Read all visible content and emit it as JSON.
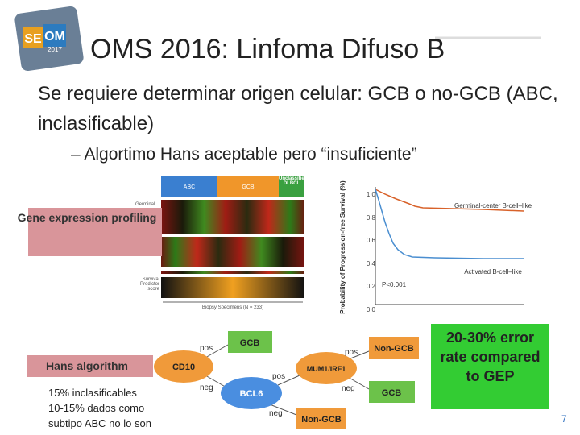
{
  "logo": {
    "left": "SE",
    "right": "OM",
    "year": "2017"
  },
  "title": "OMS 2016: Linfoma Difuso B",
  "bullet": "Se requiere determinar origen celular: GCB o no-GCB (ABC, inclasificable)",
  "sub_bullet": "– Algortimo Hans aceptable pero “insuficiente”",
  "gep": {
    "label": "Gene expression profiling",
    "headers": [
      "ABC",
      "GCB",
      "Unclassified DLBCL"
    ],
    "row_labels": [
      "Germinal",
      "Survival Predictor score"
    ],
    "x_label": "Biopsy Specimens (N = 233)"
  },
  "survival": {
    "y_label": "Probability of Progression-free Survival (%)",
    "yticks": [
      "1.0",
      "0.8",
      "0.6",
      "0.4",
      "0.2",
      "0.0"
    ],
    "curves": [
      "Germinal-center B-cell–like",
      "Activated B-cell–like"
    ],
    "p_value": "P<0.001"
  },
  "hans": {
    "label": "Hans algorithm",
    "nodes": [
      "CD10",
      "GCB",
      "BCL6",
      "MUM1/IRF1",
      "Non-GCB",
      "GCB",
      "Non-GCB"
    ],
    "edges": [
      "pos",
      "neg",
      "pos",
      "neg",
      "pos",
      "neg"
    ]
  },
  "callout": "20-30% error rate compared to GEP",
  "note": [
    "15% inclasificables",
    "10-15% dados como",
    "subtipo ABC no lo son"
  ],
  "page_number": "7"
}
